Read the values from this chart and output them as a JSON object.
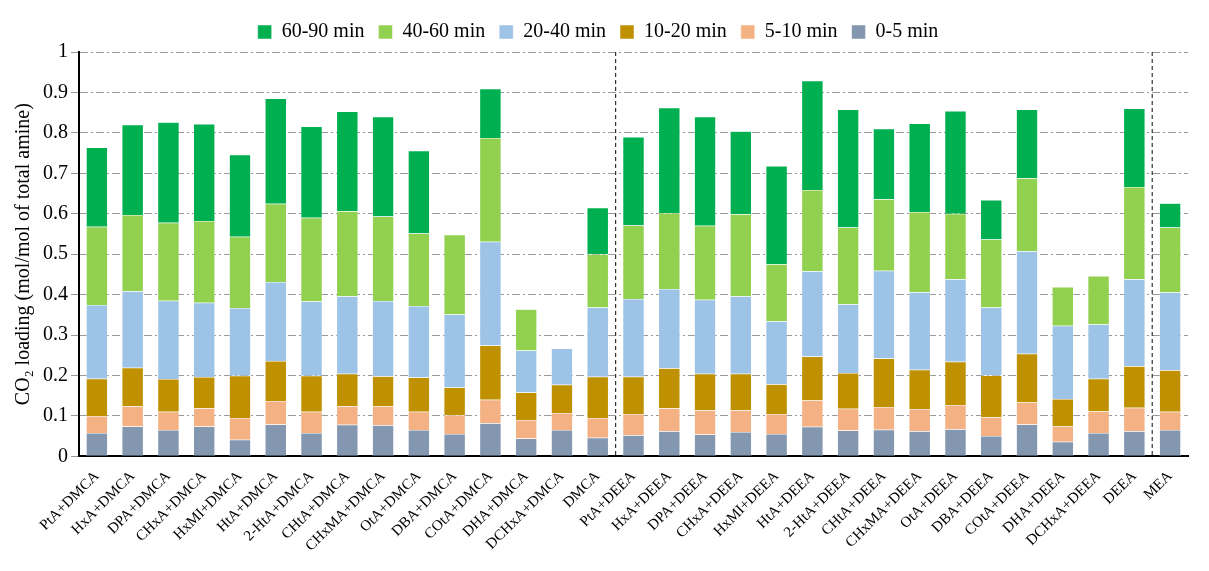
{
  "chart_data": {
    "type": "bar",
    "stacked": true,
    "ylabel": "CO₂ loading (mol/mol of total amine)",
    "categories": [
      "PtA+DMCA",
      "HxA+DMCA",
      "DPA+DMCA",
      "CHxA+DMCA",
      "HxMI+DMCA",
      "HtA+DMCA",
      "2-HtA+DMCA",
      "CHtA+DMCA",
      "CHxMA+DMCA",
      "OtA+DMCA",
      "DBA+DMCA",
      "COtA+DMCA",
      "DHA+DMCA",
      "DCHxA+DMCA",
      "DMCA",
      "PtA+DEEA",
      "HxA+DEEA",
      "DPA+DEEA",
      "CHxA+DEEA",
      "HxMI+DEEA",
      "HtA+DEEA",
      "2-HtA+DEEA",
      "CHtA+DEEA",
      "CHxMA+DEEA",
      "OtA+DEEA",
      "DBA+DEEA",
      "COtA+DEEA",
      "DHA+DEEA",
      "DCHxA+DEEA",
      "DEEA",
      "MEA"
    ],
    "series": [
      {
        "name": "0-5 min",
        "color": "#8497b0",
        "values": [
          0.058,
          0.074,
          0.065,
          0.074,
          0.041,
          0.079,
          0.058,
          0.078,
          0.077,
          0.065,
          0.055,
          0.082,
          0.044,
          0.065,
          0.046,
          0.052,
          0.062,
          0.054,
          0.06,
          0.055,
          0.073,
          0.064,
          0.066,
          0.062,
          0.067,
          0.05,
          0.079,
          0.036,
          0.058,
          0.062,
          0.065
        ]
      },
      {
        "name": "5-10 min",
        "color": "#f4b183",
        "values": [
          0.042,
          0.05,
          0.045,
          0.045,
          0.054,
          0.058,
          0.052,
          0.046,
          0.046,
          0.045,
          0.047,
          0.058,
          0.046,
          0.042,
          0.049,
          0.053,
          0.057,
          0.06,
          0.054,
          0.05,
          0.065,
          0.054,
          0.056,
          0.055,
          0.06,
          0.046,
          0.054,
          0.038,
          0.053,
          0.058,
          0.045
        ]
      },
      {
        "name": "10-20 min",
        "color": "#bf9000",
        "values": [
          0.092,
          0.095,
          0.081,
          0.077,
          0.104,
          0.099,
          0.089,
          0.08,
          0.075,
          0.085,
          0.068,
          0.134,
          0.068,
          0.07,
          0.102,
          0.092,
          0.099,
          0.09,
          0.09,
          0.073,
          0.109,
          0.088,
          0.12,
          0.097,
          0.107,
          0.104,
          0.121,
          0.068,
          0.081,
          0.103,
          0.103
        ]
      },
      {
        "name": "20-40 min",
        "color": "#9dc3e6",
        "values": [
          0.182,
          0.189,
          0.194,
          0.184,
          0.168,
          0.195,
          0.184,
          0.192,
          0.186,
          0.177,
          0.181,
          0.257,
          0.104,
          0.09,
          0.171,
          0.192,
          0.196,
          0.183,
          0.192,
          0.156,
          0.211,
          0.17,
          0.217,
          0.192,
          0.204,
          0.168,
          0.253,
          0.181,
          0.134,
          0.215,
          0.192
        ]
      },
      {
        "name": "40-60 min",
        "color": "#92d050",
        "values": [
          0.194,
          0.189,
          0.193,
          0.202,
          0.176,
          0.194,
          0.207,
          0.21,
          0.209,
          0.179,
          0.197,
          0.256,
          0.102,
          null,
          0.132,
          0.182,
          0.188,
          0.183,
          0.203,
          0.141,
          0.201,
          0.19,
          0.177,
          0.198,
          0.162,
          0.168,
          0.181,
          0.096,
          0.12,
          0.228,
          0.161
        ]
      },
      {
        "name": "60-90 min",
        "color": "#00b050",
        "values": [
          0.196,
          0.223,
          0.248,
          0.24,
          0.203,
          0.26,
          0.226,
          0.247,
          0.247,
          0.205,
          null,
          0.122,
          null,
          null,
          0.115,
          0.219,
          0.26,
          0.27,
          0.205,
          0.243,
          0.27,
          0.292,
          0.174,
          0.219,
          0.254,
          0.098,
          0.17,
          null,
          null,
          0.194,
          0.06
        ]
      }
    ],
    "ylim": [
      0,
      1
    ],
    "yticks": [
      0,
      0.1,
      0.2,
      0.3,
      0.4,
      0.5,
      0.6,
      0.7,
      0.8,
      0.9,
      1
    ],
    "grid": "y",
    "legend": "top"
  }
}
